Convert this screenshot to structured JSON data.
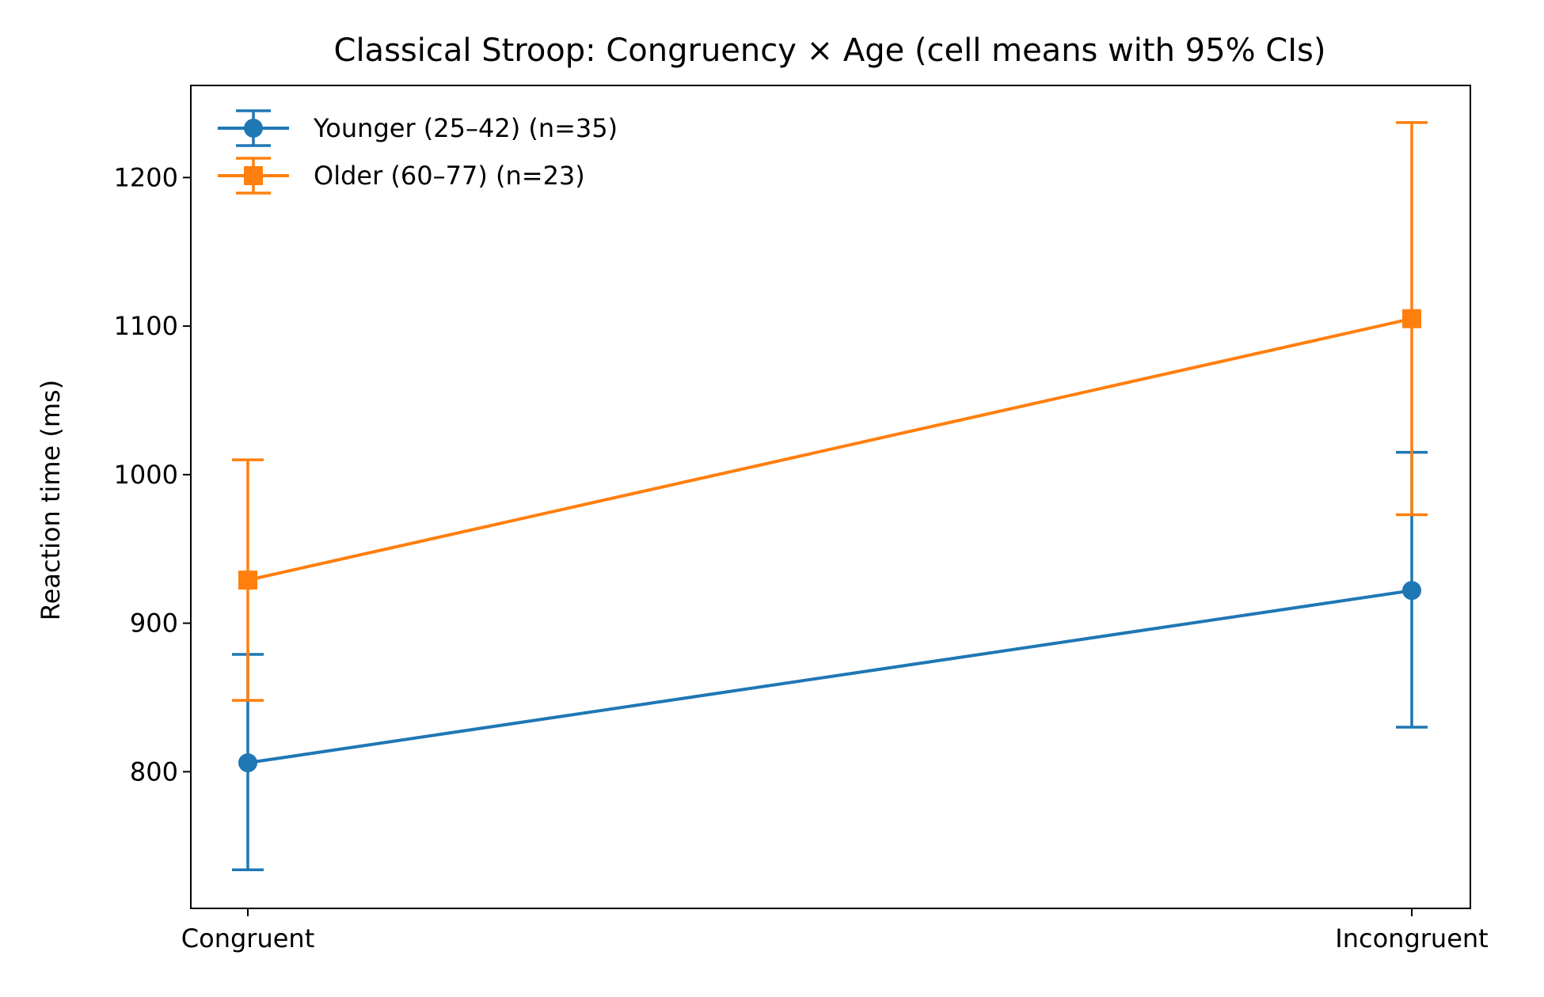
{
  "chart_data": {
    "type": "line",
    "title": "Classical Stroop: Congruency × Age (cell means with 95% CIs)",
    "xlabel": "",
    "ylabel": "Reaction time (ms)",
    "categories": [
      "Congruent",
      "Incongruent"
    ],
    "ylim": [
      708,
      1262
    ],
    "yticks": [
      800,
      900,
      1000,
      1100,
      1200
    ],
    "grid": false,
    "legend_position": "top-left",
    "series": [
      {
        "name": "Younger (25–42) (n=35)",
        "color": "#1f77b4",
        "marker": "circle",
        "values": [
          806,
          922
        ],
        "ci_lower": [
          734,
          830
        ],
        "ci_upper": [
          879,
          1015
        ]
      },
      {
        "name": "Older (60–77) (n=23)",
        "color": "#ff7f0e",
        "marker": "square",
        "values": [
          929,
          1105
        ],
        "ci_lower": [
          848,
          973
        ],
        "ci_upper": [
          1010,
          1237
        ]
      }
    ]
  }
}
